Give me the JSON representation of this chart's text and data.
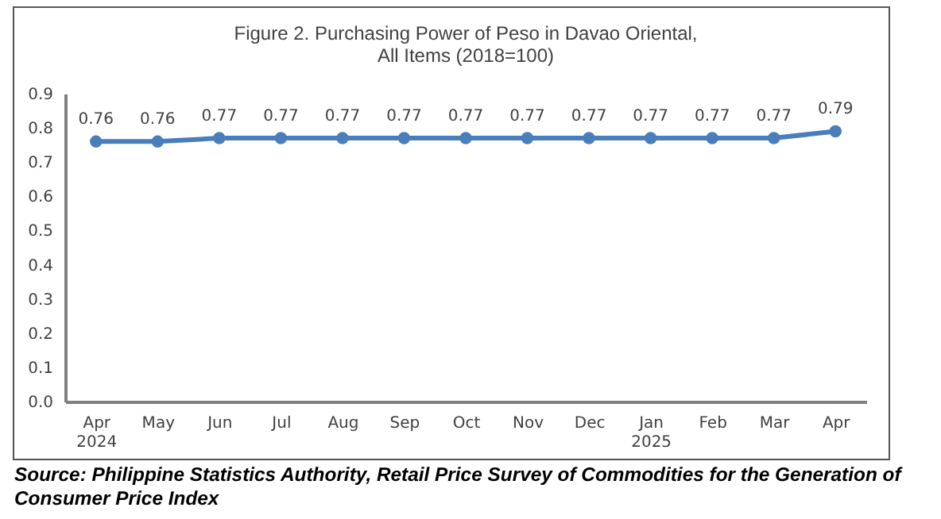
{
  "chart_data": {
    "type": "line",
    "title": "Figure 2. Purchasing Power of Peso in Davao Oriental,\nAll Items (2018=100)",
    "categories": [
      "Apr\n2024",
      "May",
      "Jun",
      "Jul",
      "Aug",
      "Sep",
      "Oct",
      "Nov",
      "Dec",
      "Jan\n2025",
      "Feb",
      "Mar",
      "Apr"
    ],
    "series": [
      {
        "color": "#4a7ebb",
        "values": [
          0.76,
          0.76,
          0.77,
          0.77,
          0.77,
          0.77,
          0.77,
          0.77,
          0.77,
          0.77,
          0.77,
          0.77,
          0.79
        ]
      }
    ],
    "ylim": [
      0,
      0.9
    ],
    "yticks": [
      {
        "value": 0,
        "label": "0.0"
      },
      {
        "value": 0.1,
        "label": "0.1"
      },
      {
        "value": 0.2,
        "label": "0.2"
      },
      {
        "value": 0.3,
        "label": "0.3"
      },
      {
        "value": 0.4,
        "label": "0.4"
      },
      {
        "value": 0.5,
        "label": "0.5"
      },
      {
        "value": 0.6,
        "label": "0.6"
      },
      {
        "value": 0.7,
        "label": "0.7"
      },
      {
        "value": 0.8,
        "label": "0.8"
      },
      {
        "value": 0.9,
        "label": "0.9"
      }
    ],
    "data_labels": true,
    "marker": "circle",
    "grid": false,
    "legend": false,
    "annotations": [
      "Source: Philippine Statistics Authority, Retail Price Survey of Commodities for the Generation of Consumer Price Index"
    ]
  }
}
